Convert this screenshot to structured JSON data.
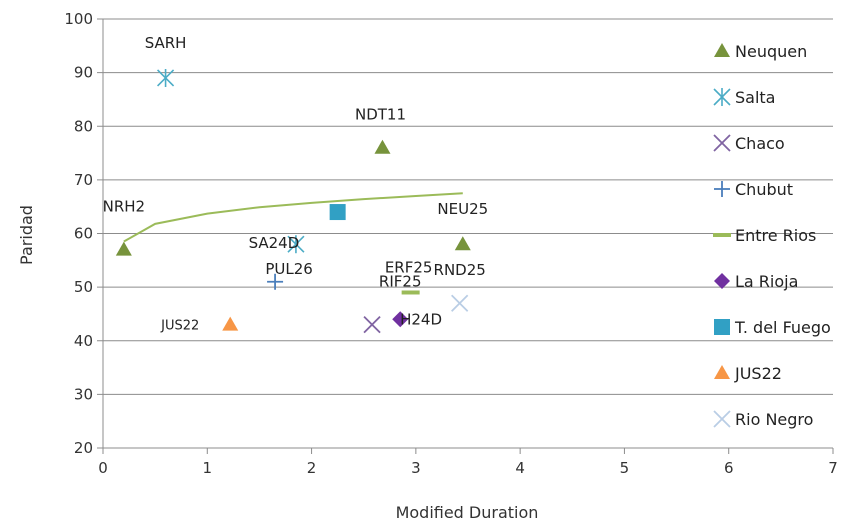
{
  "chart_data": {
    "type": "scatter",
    "xlabel": "Modified Duration",
    "ylabel": "Paridad",
    "xlim": [
      0,
      7
    ],
    "ylim": [
      20,
      100
    ],
    "x_ticks": [
      0,
      1,
      2,
      3,
      4,
      5,
      6,
      7
    ],
    "y_ticks": [
      20,
      30,
      40,
      50,
      60,
      70,
      80,
      90,
      100
    ],
    "grid": true,
    "legend_position": "right",
    "series": [
      {
        "name": "Neuquen",
        "marker": "triangle",
        "color": "#77933c",
        "points": [
          {
            "x": 0.2,
            "y": 57,
            "label": "NRH2"
          },
          {
            "x": 2.68,
            "y": 76,
            "label": "NDT11"
          },
          {
            "x": 3.45,
            "y": 58,
            "label": "NEU25"
          }
        ]
      },
      {
        "name": "Salta",
        "marker": "asterisk",
        "color": "#4bacc6",
        "points": [
          {
            "x": 0.6,
            "y": 89,
            "label": "SARH"
          },
          {
            "x": 1.85,
            "y": 58,
            "label": "SA24D"
          }
        ]
      },
      {
        "name": "Chaco",
        "marker": "x",
        "color": "#8064a2",
        "points": [
          {
            "x": 2.58,
            "y": 43,
            "label": ""
          }
        ]
      },
      {
        "name": "Chubut",
        "marker": "plus",
        "color": "#4a7ebb",
        "points": [
          {
            "x": 1.65,
            "y": 51,
            "label": "PUL26"
          }
        ]
      },
      {
        "name": "Entre Rios",
        "marker": "dash",
        "color": "#9bbb59",
        "points": [
          {
            "x": 2.95,
            "y": 49,
            "label": "ERF25"
          }
        ]
      },
      {
        "name": "La Rioja",
        "marker": "diamond",
        "color": "#7030a0",
        "points": [
          {
            "x": 2.85,
            "y": 44,
            "label": "RIF25"
          }
        ]
      },
      {
        "name": "T. del Fuego",
        "marker": "square",
        "color": "#31a0c4",
        "points": [
          {
            "x": 2.25,
            "y": 64,
            "label": ""
          }
        ]
      },
      {
        "name": "JUS22",
        "marker": "triangle",
        "color": "#f79646",
        "points": [
          {
            "x": 1.22,
            "y": 43,
            "label": "JUS22"
          }
        ]
      },
      {
        "name": "Rio Negro",
        "marker": "x",
        "color": "#b9cde5",
        "points": [
          {
            "x": 3.42,
            "y": 47,
            "label": "RND25"
          }
        ]
      }
    ],
    "annotations": [
      {
        "text": "H24D",
        "x": 3.05,
        "y": 44
      }
    ],
    "trendline": {
      "type": "logarithmic",
      "color": "#9bbb59",
      "points": [
        {
          "x": 0.2,
          "y": 58.5
        },
        {
          "x": 0.5,
          "y": 61.8
        },
        {
          "x": 1.0,
          "y": 63.7
        },
        {
          "x": 1.5,
          "y": 64.9
        },
        {
          "x": 2.0,
          "y": 65.7
        },
        {
          "x": 2.5,
          "y": 66.4
        },
        {
          "x": 3.0,
          "y": 67.0
        },
        {
          "x": 3.45,
          "y": 67.5
        }
      ]
    }
  }
}
